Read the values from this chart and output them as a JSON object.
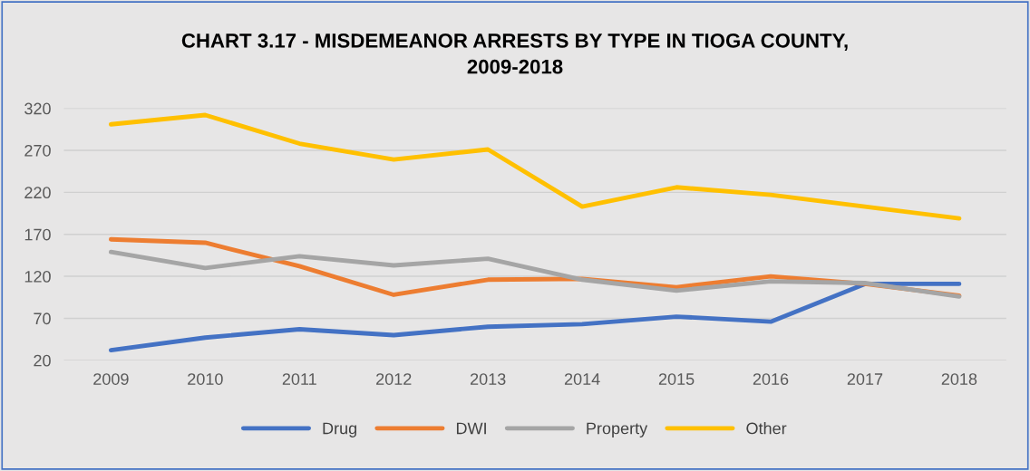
{
  "chart_data": {
    "type": "line",
    "title": "CHART 3.17 - MISDEMEANOR ARRESTS BY TYPE IN TIOGA COUNTY,\n2009-2018",
    "categories": [
      "2009",
      "2010",
      "2011",
      "2012",
      "2013",
      "2014",
      "2015",
      "2016",
      "2017",
      "2018"
    ],
    "series": [
      {
        "name": "Drug",
        "color": "#4472c4",
        "values": [
          32,
          47,
          57,
          50,
          60,
          63,
          72,
          66,
          111,
          111
        ]
      },
      {
        "name": "DWI",
        "color": "#ed7d31",
        "values": [
          164,
          160,
          132,
          98,
          116,
          117,
          107,
          120,
          111,
          97
        ]
      },
      {
        "name": "Property",
        "color": "#a5a5a5",
        "values": [
          149,
          130,
          144,
          133,
          141,
          116,
          103,
          114,
          112,
          96
        ]
      },
      {
        "name": "Other",
        "color": "#ffc000",
        "values": [
          301,
          312,
          278,
          259,
          271,
          203,
          226,
          217,
          203,
          189
        ]
      }
    ],
    "ylim": [
      20,
      320
    ],
    "yticks": [
      20,
      70,
      120,
      170,
      220,
      270,
      320
    ],
    "grid": "y",
    "legend": "bottom",
    "marker": "none",
    "line_style": "solid"
  }
}
